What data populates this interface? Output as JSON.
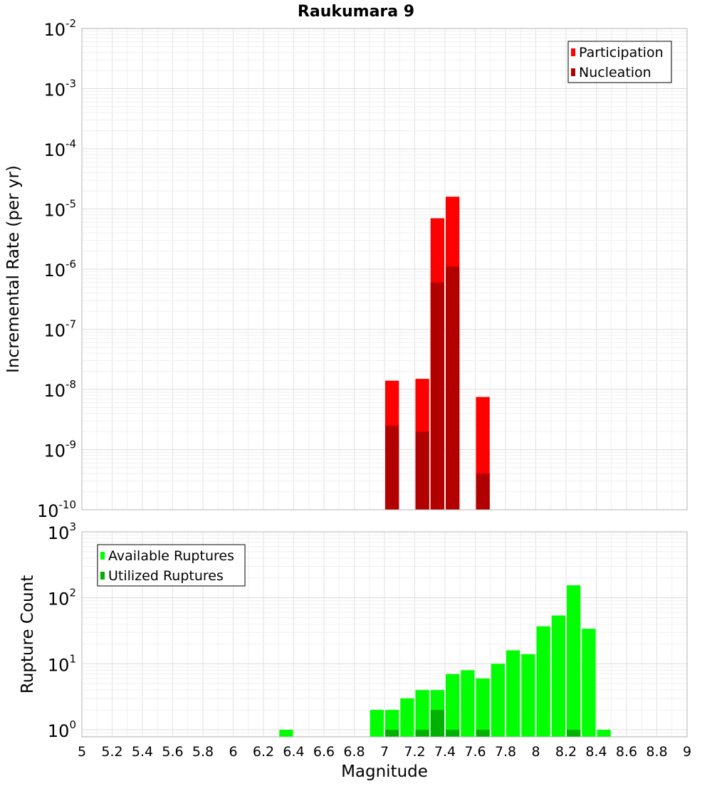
{
  "chart_data": [
    {
      "type": "bar",
      "title": "Raukumara 9",
      "xlabel": "",
      "ylabel": "Incremental Rate (per yr)",
      "yscale": "log",
      "ylim": [
        1e-10,
        0.01
      ],
      "xlim": [
        5,
        9
      ],
      "bin_width": 0.1,
      "grid": true,
      "legend_position": "top-right",
      "y_ticks": [
        {
          "base": "10",
          "exp": "-10",
          "value": 1e-10
        },
        {
          "base": "10",
          "exp": "-9",
          "value": 1e-09
        },
        {
          "base": "10",
          "exp": "-8",
          "value": 1e-08
        },
        {
          "base": "10",
          "exp": "-7",
          "value": 1e-07
        },
        {
          "base": "10",
          "exp": "-6",
          "value": 1e-06
        },
        {
          "base": "10",
          "exp": "-5",
          "value": 1e-05
        },
        {
          "base": "10",
          "exp": "-4",
          "value": 0.0001
        },
        {
          "base": "10",
          "exp": "-3",
          "value": 0.001
        },
        {
          "base": "10",
          "exp": "-2",
          "value": 0.01
        }
      ],
      "series": [
        {
          "name": "Participation",
          "color": "#ff0000",
          "points": [
            {
              "x": 7.05,
              "y": 1.4e-08
            },
            {
              "x": 7.25,
              "y": 1.5e-08
            },
            {
              "x": 7.35,
              "y": 7e-06
            },
            {
              "x": 7.45,
              "y": 1.6e-05
            },
            {
              "x": 7.65,
              "y": 7.5e-09
            }
          ]
        },
        {
          "name": "Nucleation",
          "color": "#b20000",
          "points": [
            {
              "x": 7.05,
              "y": 2.5e-09
            },
            {
              "x": 7.25,
              "y": 2e-09
            },
            {
              "x": 7.35,
              "y": 6e-07
            },
            {
              "x": 7.45,
              "y": 1.1e-06
            },
            {
              "x": 7.65,
              "y": 4e-10
            }
          ]
        }
      ]
    },
    {
      "type": "bar",
      "title": "",
      "xlabel": "Magnitude",
      "ylabel": "Rupture Count",
      "yscale": "log",
      "ylim": [
        0.78,
        1000
      ],
      "xlim": [
        5,
        9
      ],
      "bin_width": 0.1,
      "grid": true,
      "legend_position": "top-left",
      "x_ticks": [
        "5",
        "5.2",
        "5.4",
        "5.6",
        "5.8",
        "6",
        "6.2",
        "6.4",
        "6.6",
        "6.8",
        "7",
        "7.2",
        "7.4",
        "7.6",
        "7.8",
        "8",
        "8.2",
        "8.4",
        "8.6",
        "8.8",
        "9"
      ],
      "y_ticks": [
        {
          "base": "10",
          "exp": "0",
          "value": 1
        },
        {
          "base": "10",
          "exp": "1",
          "value": 10
        },
        {
          "base": "10",
          "exp": "2",
          "value": 100
        },
        {
          "base": "10",
          "exp": "3",
          "value": 1000
        }
      ],
      "series": [
        {
          "name": "Available Ruptures",
          "color": "#00ff00",
          "points": [
            {
              "x": 6.35,
              "y": 1
            },
            {
              "x": 6.95,
              "y": 2
            },
            {
              "x": 7.05,
              "y": 2
            },
            {
              "x": 7.15,
              "y": 3
            },
            {
              "x": 7.25,
              "y": 4
            },
            {
              "x": 7.35,
              "y": 4
            },
            {
              "x": 7.45,
              "y": 7
            },
            {
              "x": 7.55,
              "y": 8
            },
            {
              "x": 7.65,
              "y": 6
            },
            {
              "x": 7.75,
              "y": 10
            },
            {
              "x": 7.85,
              "y": 16
            },
            {
              "x": 7.95,
              "y": 14
            },
            {
              "x": 8.05,
              "y": 37
            },
            {
              "x": 8.15,
              "y": 54
            },
            {
              "x": 8.25,
              "y": 155
            },
            {
              "x": 8.35,
              "y": 34
            },
            {
              "x": 8.45,
              "y": 1
            }
          ]
        },
        {
          "name": "Utilized Ruptures",
          "color": "#00b200",
          "points": [
            {
              "x": 7.05,
              "y": 1
            },
            {
              "x": 7.25,
              "y": 1
            },
            {
              "x": 7.35,
              "y": 2
            },
            {
              "x": 7.45,
              "y": 1
            },
            {
              "x": 7.65,
              "y": 1
            },
            {
              "x": 8.25,
              "y": 1
            }
          ]
        }
      ]
    }
  ]
}
